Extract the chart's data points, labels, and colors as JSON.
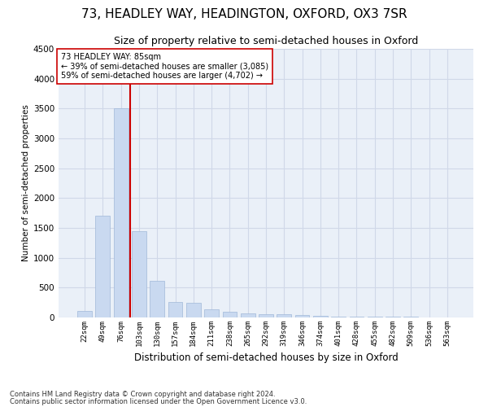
{
  "title1": "73, HEADLEY WAY, HEADINGTON, OXFORD, OX3 7SR",
  "title2": "Size of property relative to semi-detached houses in Oxford",
  "xlabel": "Distribution of semi-detached houses by size in Oxford",
  "ylabel": "Number of semi-detached properties",
  "footnote1": "Contains HM Land Registry data © Crown copyright and database right 2024.",
  "footnote2": "Contains public sector information licensed under the Open Government Licence v3.0.",
  "categories": [
    "22sqm",
    "49sqm",
    "76sqm",
    "103sqm",
    "130sqm",
    "157sqm",
    "184sqm",
    "211sqm",
    "238sqm",
    "265sqm",
    "292sqm",
    "319sqm",
    "346sqm",
    "374sqm",
    "401sqm",
    "428sqm",
    "455sqm",
    "482sqm",
    "509sqm",
    "536sqm",
    "563sqm"
  ],
  "values": [
    110,
    1700,
    3500,
    1450,
    620,
    260,
    250,
    140,
    90,
    70,
    55,
    50,
    45,
    30,
    20,
    15,
    12,
    10,
    8,
    6,
    5
  ],
  "bar_color": "#c9d9f0",
  "bar_edge_color": "#a0b8d8",
  "bar_width": 0.8,
  "property_bin_index": 2,
  "vline_color": "#cc0000",
  "annotation_text1": "73 HEADLEY WAY: 85sqm",
  "annotation_text2": "← 39% of semi-detached houses are smaller (3,085)",
  "annotation_text3": "59% of semi-detached houses are larger (4,702) →",
  "annotation_box_color": "#ffffff",
  "annotation_box_edge": "#cc0000",
  "ylim": [
    0,
    4500
  ],
  "yticks": [
    0,
    500,
    1000,
    1500,
    2000,
    2500,
    3000,
    3500,
    4000,
    4500
  ],
  "grid_color": "#d0d8e8",
  "bg_color": "#eaf0f8",
  "fig_bg_color": "#ffffff",
  "title1_fontsize": 11,
  "title2_fontsize": 9
}
